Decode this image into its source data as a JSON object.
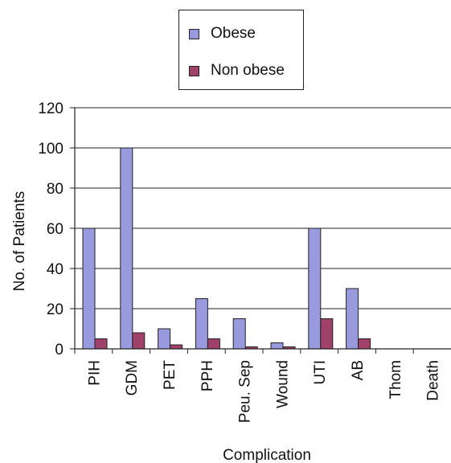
{
  "chart_data": {
    "type": "bar",
    "title": "",
    "xlabel": "Complication",
    "ylabel": "No. of Patients",
    "ylim": [
      0,
      120
    ],
    "yticks": [
      0,
      20,
      40,
      60,
      80,
      100,
      120
    ],
    "grid": true,
    "legend_position": "top-center",
    "categories": [
      "PIH",
      "GDM",
      "PET",
      "PPH",
      "Peu. Sep",
      "Wound",
      "UTI",
      "AB",
      "Thom",
      "Death"
    ],
    "series": [
      {
        "name": "Obese",
        "color": "#9999dd",
        "values": [
          60,
          100,
          10,
          25,
          15,
          3,
          60,
          30,
          0,
          0
        ]
      },
      {
        "name": "Non obese",
        "color": "#a0416a",
        "values": [
          5,
          8,
          2,
          5,
          1,
          1,
          15,
          5,
          0,
          0
        ]
      }
    ]
  }
}
